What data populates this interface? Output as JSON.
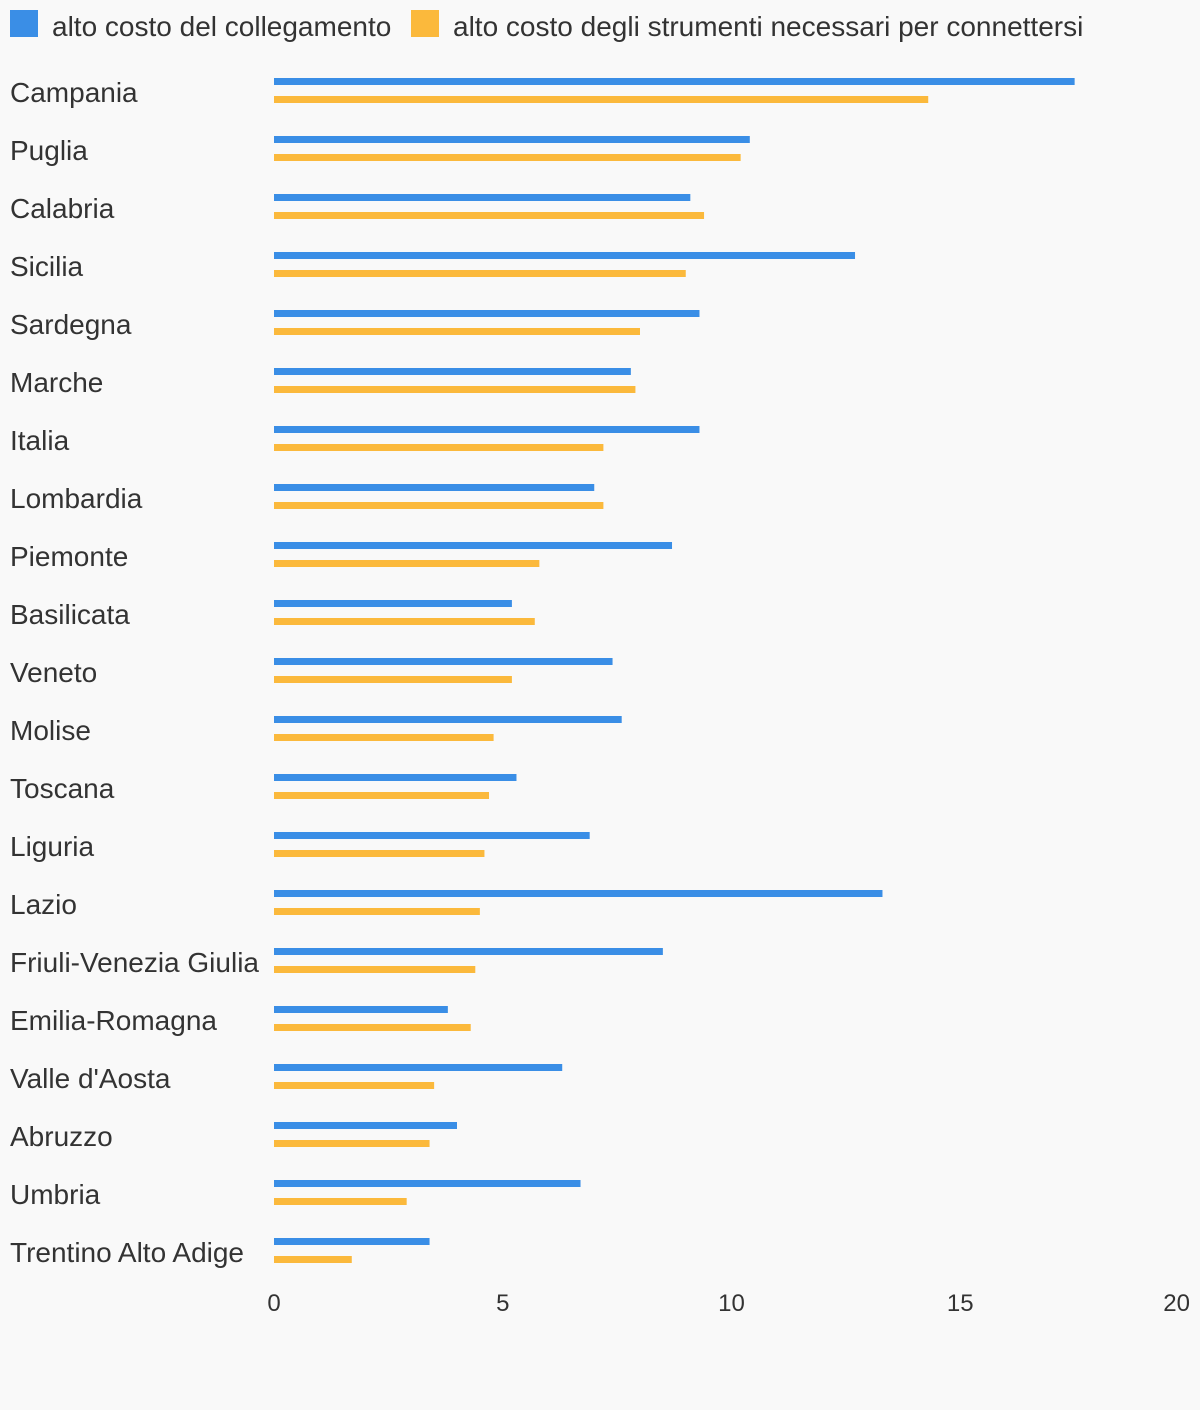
{
  "chart_data": {
    "type": "bar",
    "orientation": "horizontal",
    "categories": [
      "Campania",
      "Puglia",
      "Calabria",
      "Sicilia",
      "Sardegna",
      "Marche",
      "Italia",
      "Lombardia",
      "Piemonte",
      "Basilicata",
      "Veneto",
      "Molise",
      "Toscana",
      "Liguria",
      "Lazio",
      "Friuli-Venezia Giulia",
      "Emilia-Romagna",
      "Valle d'Aosta",
      "Abruzzo",
      "Umbria",
      "Trentino Alto Adige"
    ],
    "series": [
      {
        "name": "alto costo del collegamento",
        "color": "#3a8ee6",
        "values": [
          17.5,
          10.4,
          9.1,
          12.7,
          9.3,
          7.8,
          9.3,
          7.0,
          8.7,
          5.2,
          7.4,
          7.6,
          5.3,
          6.9,
          13.3,
          8.5,
          3.8,
          6.3,
          4.0,
          6.7,
          3.4
        ]
      },
      {
        "name": "alto costo degli strumenti necessari per connettersi",
        "color": "#fbb93c",
        "values": [
          14.3,
          10.2,
          9.4,
          9.0,
          8.0,
          7.9,
          7.2,
          7.2,
          5.8,
          5.7,
          5.2,
          4.8,
          4.7,
          4.6,
          4.5,
          4.4,
          4.3,
          3.5,
          3.4,
          2.9,
          1.7
        ]
      }
    ],
    "xlim": [
      0,
      20
    ],
    "xticks": [
      "0",
      "5",
      "10",
      "15",
      "20"
    ],
    "legend_position": "top-left",
    "grid": false
  }
}
